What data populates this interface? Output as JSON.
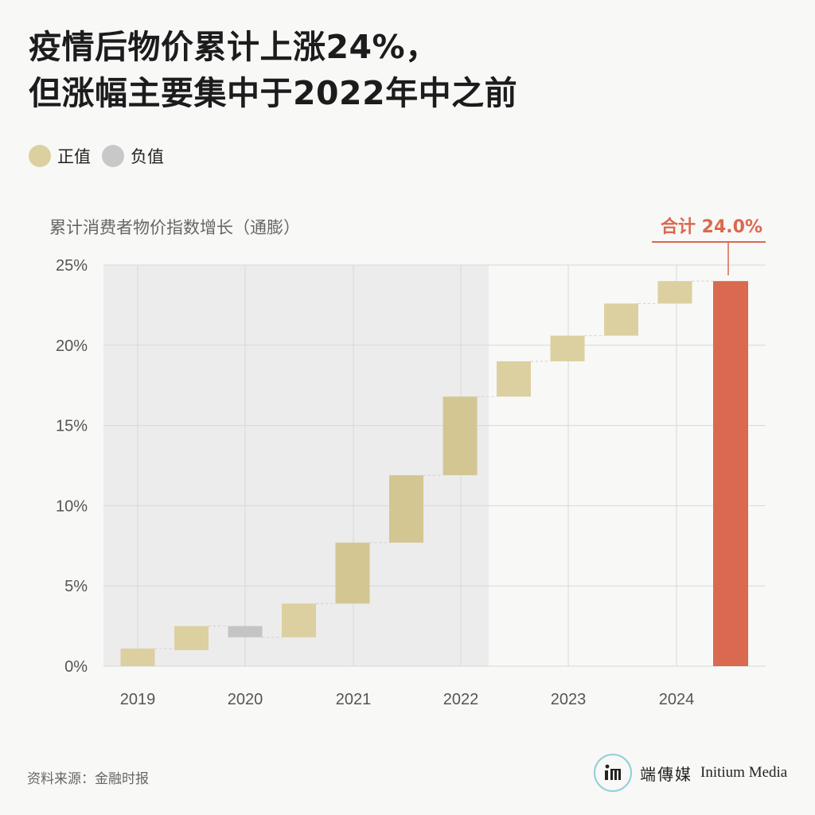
{
  "title": {
    "line1": "疫情后物价累计上涨24%，",
    "line2": "但涨幅主要集中于2022年中之前"
  },
  "legend": [
    {
      "label": "正值",
      "color": "#dcd0a0"
    },
    {
      "label": "负值",
      "color": "#c8c8c8"
    }
  ],
  "colors": {
    "positive": "#dcd0a0",
    "positive_deep": "#d3c692",
    "negative": "#c4c4c4",
    "total": "#d9694f",
    "shade": "#ececec",
    "grid": "#d8d8d8"
  },
  "chart_data": {
    "type": "waterfall",
    "title": "",
    "ylabel": "累计消费者物价指数增长（通膨）",
    "ylim": [
      0,
      25
    ],
    "y_ticks": [
      "0%",
      "5%",
      "10%",
      "15%",
      "20%",
      "25%"
    ],
    "x_ticks": [
      "2019",
      "2020",
      "2021",
      "2022",
      "2023",
      "2024"
    ],
    "shaded_period": "2019 – 2022年中",
    "steps": [
      {
        "start": 0.0,
        "end": 1.1,
        "sign": "positive"
      },
      {
        "start": 1.0,
        "end": 2.5,
        "sign": "positive"
      },
      {
        "start": 2.5,
        "end": 1.8,
        "sign": "negative"
      },
      {
        "start": 1.8,
        "end": 3.9,
        "sign": "positive"
      },
      {
        "start": 3.9,
        "end": 7.7,
        "sign": "positive"
      },
      {
        "start": 7.7,
        "end": 11.9,
        "sign": "positive"
      },
      {
        "start": 11.9,
        "end": 16.8,
        "sign": "positive"
      },
      {
        "start": 16.8,
        "end": 19.0,
        "sign": "positive"
      },
      {
        "start": 19.0,
        "end": 20.6,
        "sign": "positive"
      },
      {
        "start": 20.6,
        "end": 22.6,
        "sign": "positive"
      },
      {
        "start": 22.6,
        "end": 24.0,
        "sign": "positive"
      }
    ],
    "total": {
      "value": 24.0,
      "label": "合计 24.0%"
    }
  },
  "source": "资料来源：金融时报",
  "brand": {
    "cn": "端傳媒",
    "en": "Initium Media"
  }
}
